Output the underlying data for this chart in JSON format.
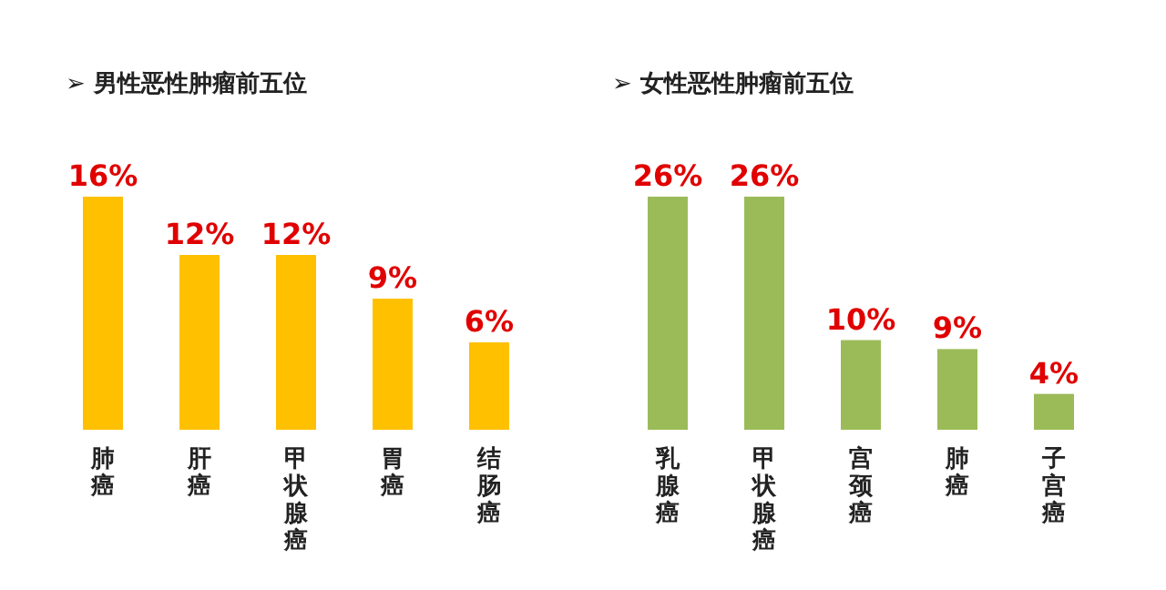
{
  "chart_data": [
    {
      "type": "bar",
      "title": "➢ 男性恶性肿瘤前五位",
      "categories": [
        "肺癌",
        "肝癌",
        "甲状腺癌",
        "胃癌",
        "结肠癌"
      ],
      "values": [
        16,
        12,
        12,
        9,
        6
      ],
      "value_labels": [
        "16%",
        "12%",
        "12%",
        "9%",
        "6%"
      ],
      "color": "#ffc000"
    },
    {
      "type": "bar",
      "title": "➢ 女性恶性肿瘤前五位",
      "categories": [
        "乳腺癌",
        "甲状腺癌",
        "宫颈癌",
        "肺癌",
        "子宫癌"
      ],
      "values": [
        26,
        26,
        10,
        9,
        4
      ],
      "value_labels": [
        "26%",
        "26%",
        "10%",
        "9%",
        "4%"
      ],
      "color": "#9bbb59"
    }
  ]
}
